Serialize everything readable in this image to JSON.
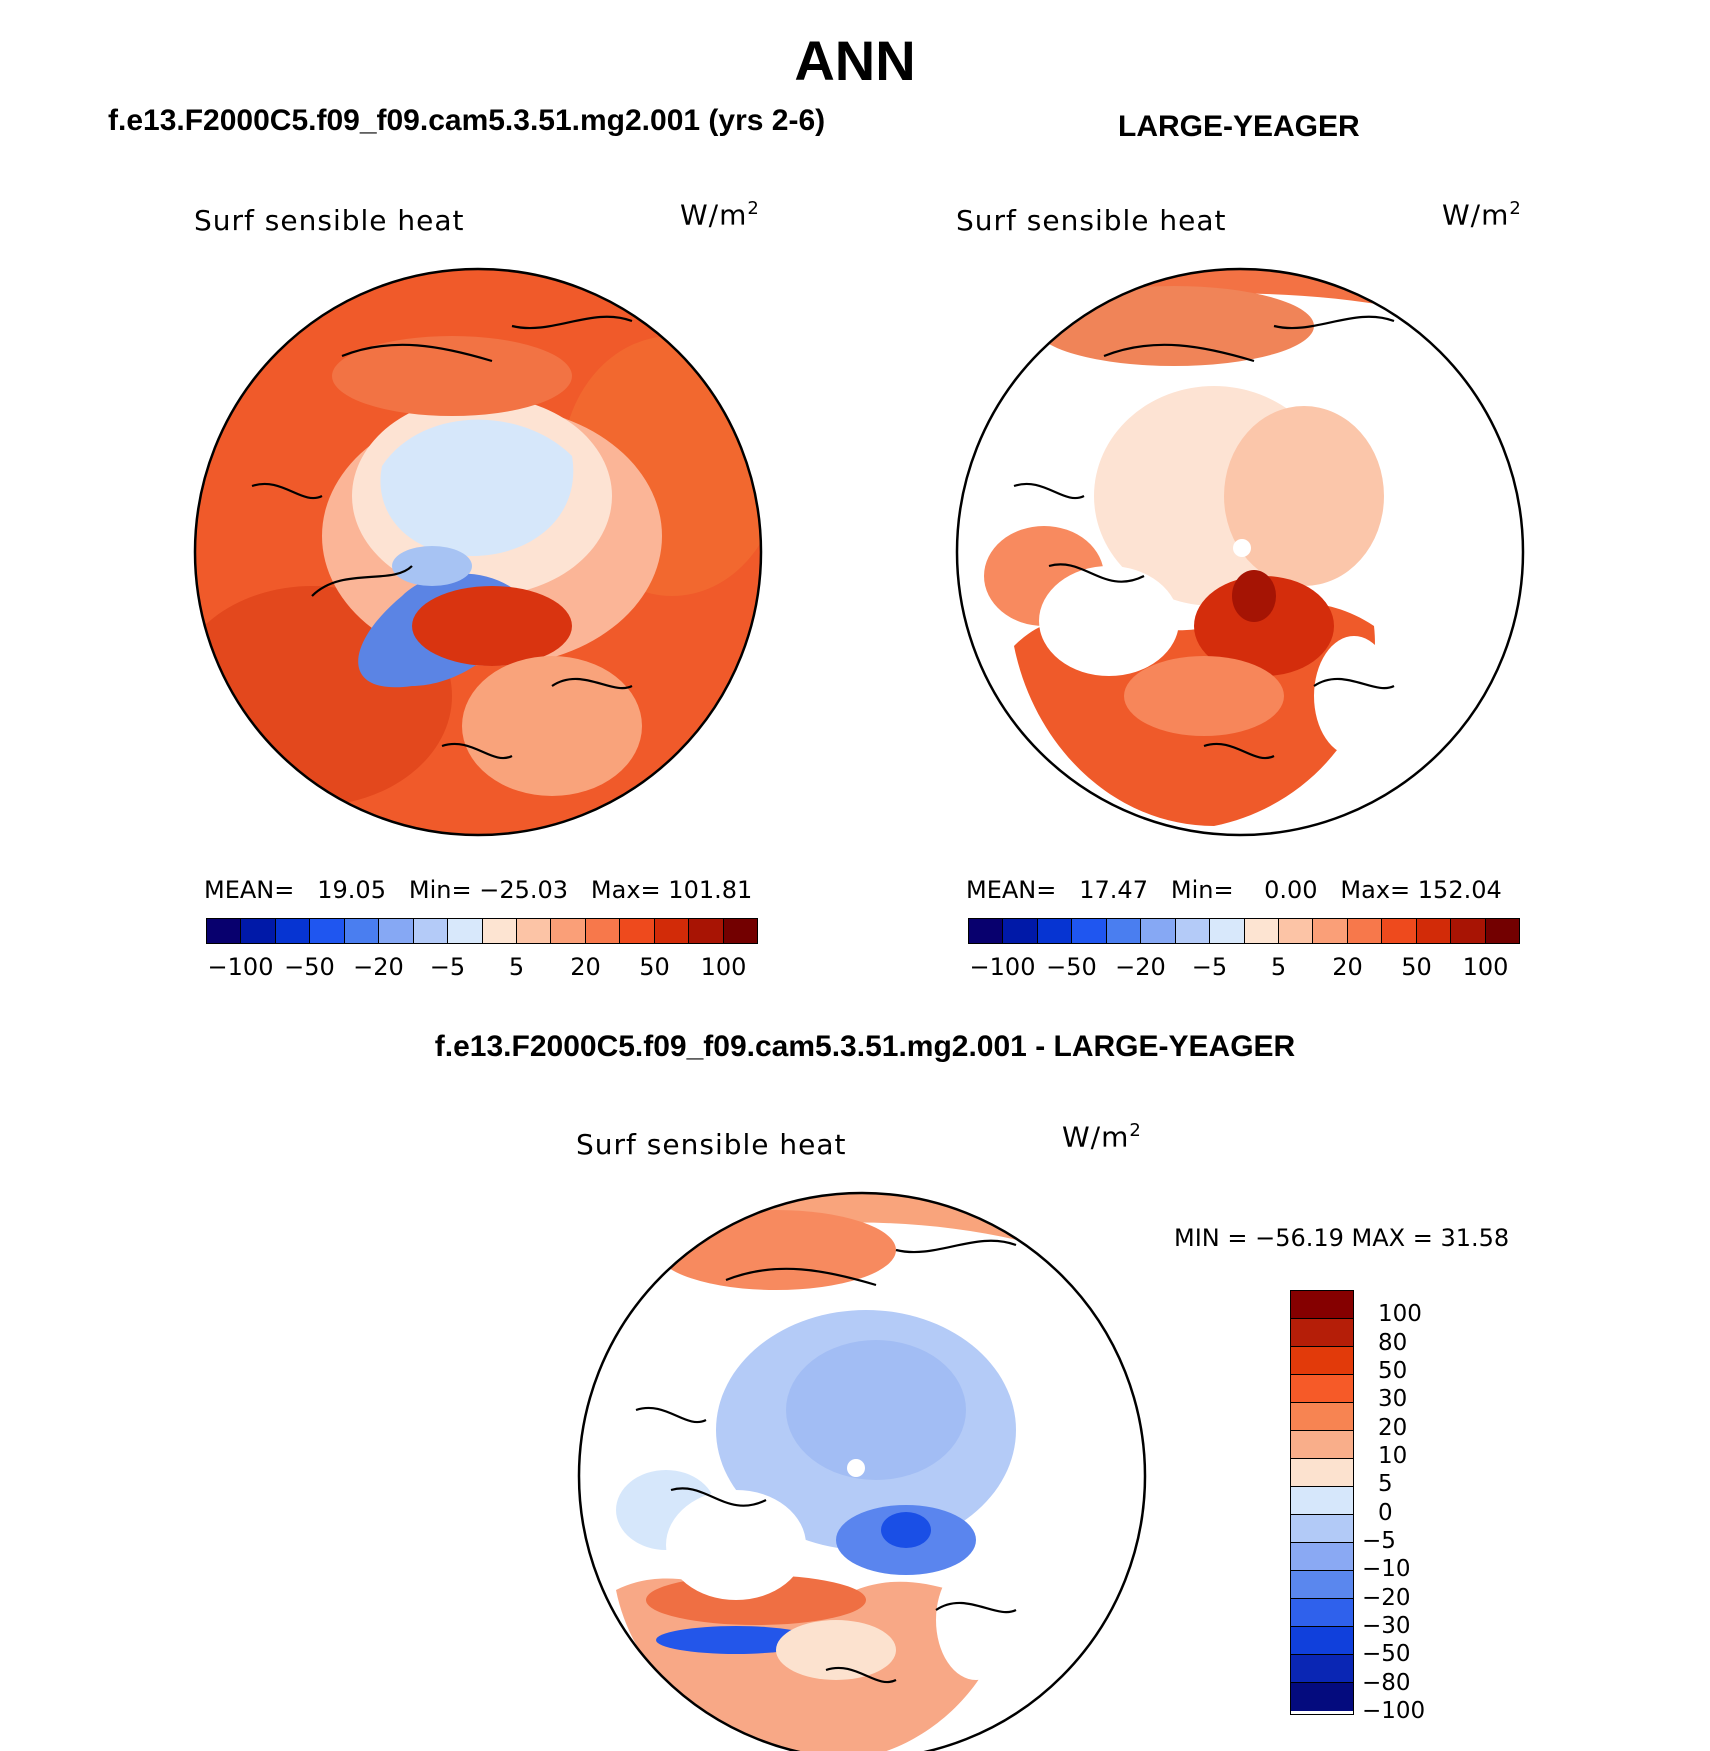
{
  "title": "ANN",
  "panels": [
    {
      "title": "f.e13.F2000C5.f09_f09.cam5.3.51.mg2.001 (yrs 2-6)",
      "variable": "Surf  sensible  heat",
      "units": "W/m",
      "units_exp": "2",
      "mean_label": "MEAN=",
      "mean": "19.05",
      "min_label": "Min=",
      "min": "−25.03",
      "max_label": "Max=",
      "max": "101.81"
    },
    {
      "title": "LARGE-YEAGER",
      "variable": "Surf  sensible  heat",
      "units": "W/m",
      "units_exp": "2",
      "mean_label": "MEAN=",
      "mean": "17.47",
      "min_label": "Min=",
      "min": "0.00",
      "max_label": "Max=",
      "max": "152.04"
    }
  ],
  "diff_panel": {
    "title": "f.e13.F2000C5.f09_f09.cam5.3.51.mg2.001 - LARGE-YEAGER",
    "variable": "Surf  sensible  heat",
    "units": "W/m",
    "units_exp": "2",
    "minmax": "MIN = −56.19 MAX =   31.58"
  },
  "colorbar_top": {
    "colors": [
      "#08006e",
      "#0019a8",
      "#0634d2",
      "#1f56f0",
      "#4a7ef0",
      "#86a8f4",
      "#b4cbf8",
      "#d8e8fb",
      "#fde4d2",
      "#fcc4a6",
      "#fa9f78",
      "#f7784b",
      "#ee4a1d",
      "#d22b08",
      "#a81404",
      "#730000"
    ],
    "labels": [
      "−100",
      "−50",
      "−20",
      "−5",
      "5",
      "20",
      "50",
      "100"
    ]
  },
  "colorbar_diff": {
    "colors": [
      "#850000",
      "#b51e08",
      "#e23a0a",
      "#f65a28",
      "#f78452",
      "#f9ae8a",
      "#fce2cf",
      "#d6e7fb",
      "#b2caf7",
      "#8aa9f3",
      "#5a87ee",
      "#2f61ec",
      "#1040dc",
      "#0a26b4",
      "#040b7e"
    ],
    "labels": [
      "100",
      "80",
      "50",
      "30",
      "20",
      "10",
      "5",
      "0",
      "−5",
      "−10",
      "−20",
      "−30",
      "−50",
      "−80",
      "−100"
    ]
  }
}
